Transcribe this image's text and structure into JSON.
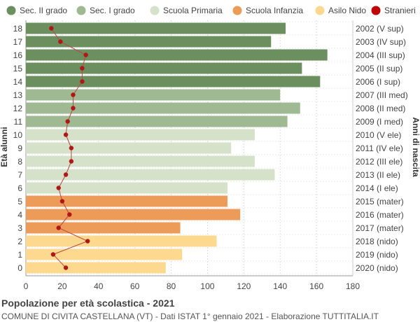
{
  "chart_data": {
    "type": "bar",
    "orientation": "horizontal",
    "ages": [
      "18",
      "17",
      "16",
      "15",
      "14",
      "13",
      "12",
      "11",
      "10",
      "9",
      "8",
      "7",
      "6",
      "5",
      "4",
      "3",
      "2",
      "1",
      "0"
    ],
    "birth_years": [
      "2002 (V sup)",
      "2003 (IV sup)",
      "2004 (III sup)",
      "2005 (II sup)",
      "2006 (I sup)",
      "2007 (III med)",
      "2008 (II med)",
      "2009 (I med)",
      "2010 (V ele)",
      "2011 (IV ele)",
      "2012 (III ele)",
      "2013 (II ele)",
      "2014 (I ele)",
      "2015 (mater)",
      "2016 (mater)",
      "2017 (mater)",
      "2018 (nido)",
      "2019 (nido)",
      "2020 (nido)"
    ],
    "values": [
      143,
      135,
      166,
      152,
      162,
      140,
      151,
      144,
      126,
      113,
      126,
      137,
      111,
      111,
      118,
      85,
      105,
      86,
      77
    ],
    "categories_of_bar": [
      "Sec. II grado",
      "Sec. II grado",
      "Sec. II grado",
      "Sec. II grado",
      "Sec. II grado",
      "Sec. I grado",
      "Sec. I grado",
      "Sec. I grado",
      "Scuola Primaria",
      "Scuola Primaria",
      "Scuola Primaria",
      "Scuola Primaria",
      "Scuola Primaria",
      "Scuola Infanzia",
      "Scuola Infanzia",
      "Scuola Infanzia",
      "Asilo Nido",
      "Asilo Nido",
      "Asilo Nido"
    ],
    "stranieri": [
      14,
      19,
      33,
      31,
      31,
      26,
      26,
      23,
      22,
      25,
      25,
      22,
      18,
      20,
      24,
      18,
      34,
      15,
      22
    ],
    "legend": [
      {
        "name": "Sec. II grado",
        "color": "#6b8f5e"
      },
      {
        "name": "Sec. I grado",
        "color": "#9fba93"
      },
      {
        "name": "Scuola Primaria",
        "color": "#d5e2c9"
      },
      {
        "name": "Scuola Infanzia",
        "color": "#ec9c58"
      },
      {
        "name": "Asilo Nido",
        "color": "#fdd88f"
      },
      {
        "name": "Stranieri",
        "color": "#c00000"
      }
    ],
    "xticks": [
      "0",
      "20",
      "40",
      "60",
      "80",
      "100",
      "120",
      "140",
      "160",
      "180"
    ],
    "xlim": [
      0,
      180
    ],
    "ylabel": "Età alunni",
    "ylabel_right": "Anni di nascita",
    "title": "Popolazione per età scolastica - 2021",
    "subtitle": "COMUNE DI CIVITA CASTELLANA (VT) - Dati ISTAT 1° gennaio 2021 - Elaborazione TUTTITALIA.IT",
    "grid": true,
    "legend_placement": "top"
  }
}
